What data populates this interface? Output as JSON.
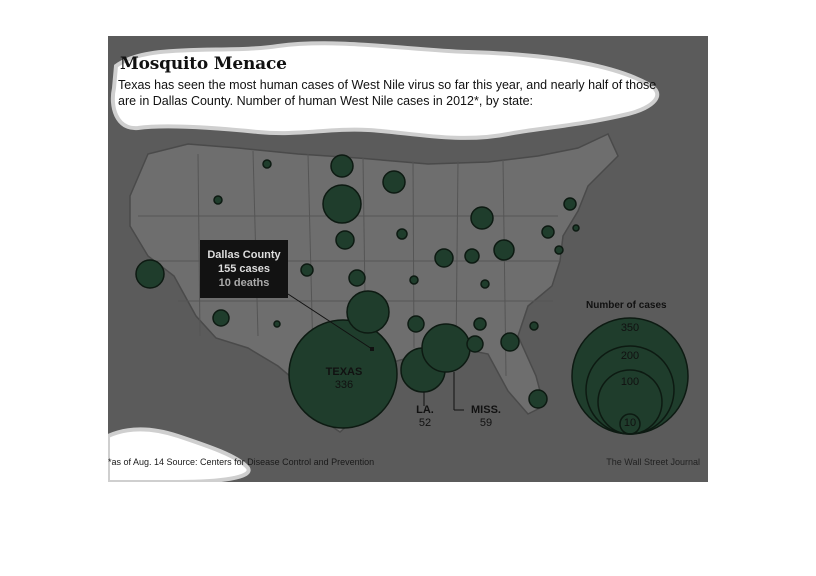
{
  "header": {
    "title": "Mosquito Menace",
    "subtitle": "Texas has seen the most human cases of West Nile virus so far this year, and nearly half of those are in Dallas County. Number of human West Nile cases in 2012*, by state:"
  },
  "callout": {
    "name": "Dallas County",
    "cases": "155 cases",
    "deaths": "10 deaths"
  },
  "labels": {
    "texas": {
      "name": "TEXAS",
      "value": "336"
    },
    "louisiana": {
      "name": "LA.",
      "value": "52"
    },
    "mississippi": {
      "name": "MISS.",
      "value": "59"
    }
  },
  "legend": {
    "title": "Number of cases",
    "values": [
      "350",
      "200",
      "100",
      "10"
    ]
  },
  "footer": {
    "source": "*as of Aug. 14   Source: Centers for Disease Control and Prevention",
    "credit": "The Wall Street Journal"
  },
  "colors": {
    "background": "#5b5b5b",
    "land": "#6e6e6e",
    "bubble_fill": "#1f3d2c",
    "bubble_stroke": "#0d1a12"
  }
}
